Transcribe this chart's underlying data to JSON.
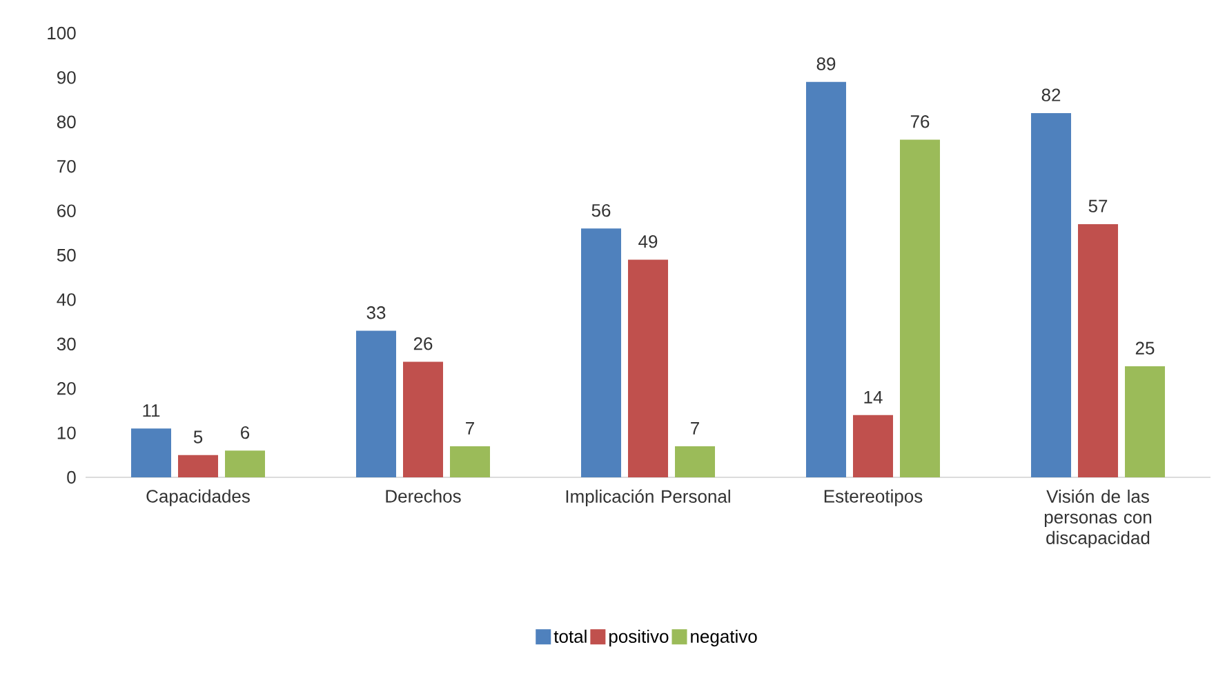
{
  "chart_data": {
    "type": "bar",
    "categories": [
      "Capacidades",
      "Derechos",
      "Implicación Personal",
      "Estereotipos",
      "Visión de las personas con discapacidad"
    ],
    "series": [
      {
        "name": "total",
        "color": "#4f81bd",
        "values": [
          11,
          33,
          56,
          89,
          82
        ]
      },
      {
        "name": "positivo",
        "color": "#c0504d",
        "values": [
          5,
          26,
          49,
          14,
          57
        ]
      },
      {
        "name": "negativo",
        "color": "#9bbb59",
        "values": [
          6,
          7,
          7,
          76,
          25
        ]
      }
    ],
    "ylim": [
      0,
      100
    ],
    "yticks": [
      0,
      10,
      20,
      30,
      40,
      50,
      60,
      70,
      80,
      90,
      100
    ],
    "data_labels": true,
    "legend": "bottom"
  }
}
